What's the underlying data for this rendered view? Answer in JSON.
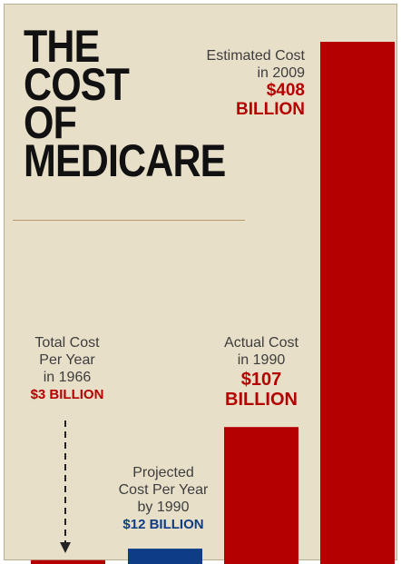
{
  "title_lines": [
    "THE",
    "COST",
    "OF",
    "MEDICARE"
  ],
  "chart_data": {
    "type": "bar",
    "categories": [
      "Total Cost Per Year in 1966",
      "Projected Cost Per Year by 1990",
      "Actual Cost in 1990",
      "Estimated Cost in 2009"
    ],
    "values": [
      3,
      12,
      107,
      408
    ],
    "unit": "billion USD",
    "colors": [
      "#b40000",
      "#0f3c86",
      "#b40000",
      "#b40000"
    ],
    "labels": [
      {
        "lines": [
          "Total Cost",
          "Per Year",
          "in 1966"
        ],
        "value_text": "$3 BILLION"
      },
      {
        "lines": [
          "Projected",
          "Cost Per Year",
          "by 1990"
        ],
        "value_text": "$12 BILLION"
      },
      {
        "lines": [
          "Actual Cost",
          "in 1990"
        ],
        "value_text": "$107 BILLION",
        "value_lines": [
          "$107",
          "BILLION"
        ]
      },
      {
        "lines": [
          "Estimated Cost",
          "in 2009"
        ],
        "value_text": "$408 BILLION",
        "value_lines": [
          "$408",
          "BILLION"
        ]
      }
    ],
    "grid": false,
    "axes": false
  }
}
